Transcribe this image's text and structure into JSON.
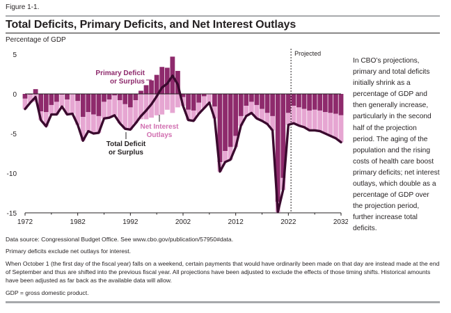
{
  "figure": {
    "label": "Figure 1-1.",
    "title": "Total Deficits, Primary Deficits, and Net Interest Outlays",
    "unit_label": "Percentage of GDP"
  },
  "side_text": "In CBO’s projections, primary and total deficits initially shrink as a percentage of GDP and then generally increase, particularly in the second half of the projection period. The aging of the population and the rising costs of health care boost primary deficits; net interest outlays, which double as a percentage of GDP over the projection period, further increase total deficits.",
  "notes": {
    "source_prefix": "Data source: Congressional Budget Office. See ",
    "source_link": "www.cbo.gov/publication/57950#data",
    "source_suffix": ".",
    "primary": "Primary deficits exclude net outlays for interest.",
    "timing": "When October 1 (the first day of the fiscal year) falls on a weekend, certain payments that would have ordinarily been made on that day are instead made at the end of September and thus are shifted into the previous fiscal year. All projections have been adjusted to exclude the effects of those timing shifts. Historical amounts have been adjusted as far back as the available data will allow.",
    "gdp": "GDP = gross domestic product."
  },
  "colors": {
    "primary_dark": "#8e2a6c",
    "primary_light": "#d16fb0",
    "net_interest": "#e6a6d2",
    "total_line": "#3a0a2e",
    "projected_line": "#231f20",
    "primary_label": "#8e2a6c",
    "interest_label": "#d16fb0",
    "total_label": "#231f20"
  },
  "chart_data": {
    "type": "area",
    "x_tick_labels": [
      "1972",
      "1982",
      "1992",
      "2002",
      "2012",
      "2022",
      "2032"
    ],
    "y_tick_labels": [
      "5",
      "0",
      "-5",
      "-10",
      "-15"
    ],
    "ylim": [
      -15,
      5
    ],
    "xlim": [
      1972,
      2032
    ],
    "projection_start": 2022,
    "projected_label": "Projected",
    "annotations": {
      "primary": [
        "Primary Deficit",
        "or Surplus"
      ],
      "interest": [
        "Net Interest",
        "Outlays"
      ],
      "total": [
        "Total Deficit",
        "or Surplus"
      ]
    },
    "years": [
      1972,
      1973,
      1974,
      1975,
      1976,
      1977,
      1978,
      1979,
      1980,
      1981,
      1982,
      1983,
      1984,
      1985,
      1986,
      1987,
      1988,
      1989,
      1990,
      1991,
      1992,
      1993,
      1994,
      1995,
      1996,
      1997,
      1998,
      1999,
      2000,
      2001,
      2002,
      2003,
      2004,
      2005,
      2006,
      2007,
      2008,
      2009,
      2010,
      2011,
      2012,
      2013,
      2014,
      2015,
      2016,
      2017,
      2018,
      2019,
      2020,
      2021,
      2022,
      2023,
      2024,
      2025,
      2026,
      2027,
      2028,
      2029,
      2030,
      2031,
      2032
    ],
    "series": [
      {
        "name": "Primary Deficit or Surplus",
        "values": [
          -0.6,
          -0.1,
          0.6,
          -2.2,
          -2.3,
          -1.4,
          -1.0,
          -0.1,
          -0.7,
          0.0,
          -0.9,
          -2.9,
          -2.3,
          -2.6,
          -2.8,
          -1.0,
          -0.7,
          -0.2,
          -0.8,
          -1.3,
          -1.7,
          -0.8,
          0.4,
          1.1,
          1.7,
          2.4,
          3.4,
          3.3,
          4.7,
          2.9,
          -0.4,
          -2.0,
          -2.1,
          -1.1,
          -0.3,
          0.0,
          -1.6,
          -8.6,
          -7.2,
          -6.7,
          -5.3,
          -2.8,
          -1.5,
          -1.0,
          -1.4,
          -1.9,
          -2.4,
          -2.8,
          -13.6,
          -10.6,
          -2.4,
          -1.5,
          -1.7,
          -1.9,
          -2.1,
          -2.0,
          -2.1,
          -2.3,
          -2.4,
          -2.5,
          -2.7
        ]
      },
      {
        "name": "Total Deficit or Surplus",
        "values": [
          -1.9,
          -1.1,
          -0.4,
          -3.3,
          -4.1,
          -2.6,
          -2.6,
          -1.6,
          -2.6,
          -2.5,
          -3.9,
          -5.9,
          -4.7,
          -5.0,
          -4.9,
          -3.1,
          -3.0,
          -2.7,
          -3.7,
          -4.4,
          -4.5,
          -3.7,
          -2.8,
          -2.1,
          -1.3,
          -0.3,
          0.8,
          1.3,
          2.3,
          1.2,
          -1.5,
          -3.3,
          -3.4,
          -2.5,
          -1.8,
          -1.1,
          -3.1,
          -9.8,
          -8.6,
          -8.3,
          -6.7,
          -4.0,
          -2.8,
          -2.4,
          -3.1,
          -3.4,
          -3.8,
          -4.6,
          -14.9,
          -12.1,
          -3.9,
          -3.7,
          -4.0,
          -4.2,
          -4.6,
          -4.6,
          -4.7,
          -5.0,
          -5.3,
          -5.6,
          -6.1
        ]
      },
      {
        "name": "Net Interest Outlays",
        "values": [
          1.3,
          1.0,
          1.0,
          1.1,
          1.8,
          1.2,
          1.6,
          1.5,
          1.9,
          2.5,
          3.0,
          3.0,
          2.4,
          2.4,
          2.1,
          2.1,
          2.3,
          2.5,
          2.9,
          3.1,
          2.8,
          2.9,
          3.2,
          3.2,
          3.0,
          2.7,
          2.6,
          2.0,
          2.4,
          1.7,
          1.1,
          1.3,
          1.3,
          1.4,
          1.5,
          1.1,
          1.5,
          1.2,
          1.4,
          1.6,
          1.4,
          1.2,
          1.3,
          1.4,
          1.7,
          1.5,
          1.4,
          1.8,
          1.3,
          1.5,
          1.5,
          2.2,
          2.3,
          2.3,
          2.5,
          2.6,
          2.6,
          2.7,
          2.9,
          3.1,
          3.4
        ]
      }
    ]
  }
}
